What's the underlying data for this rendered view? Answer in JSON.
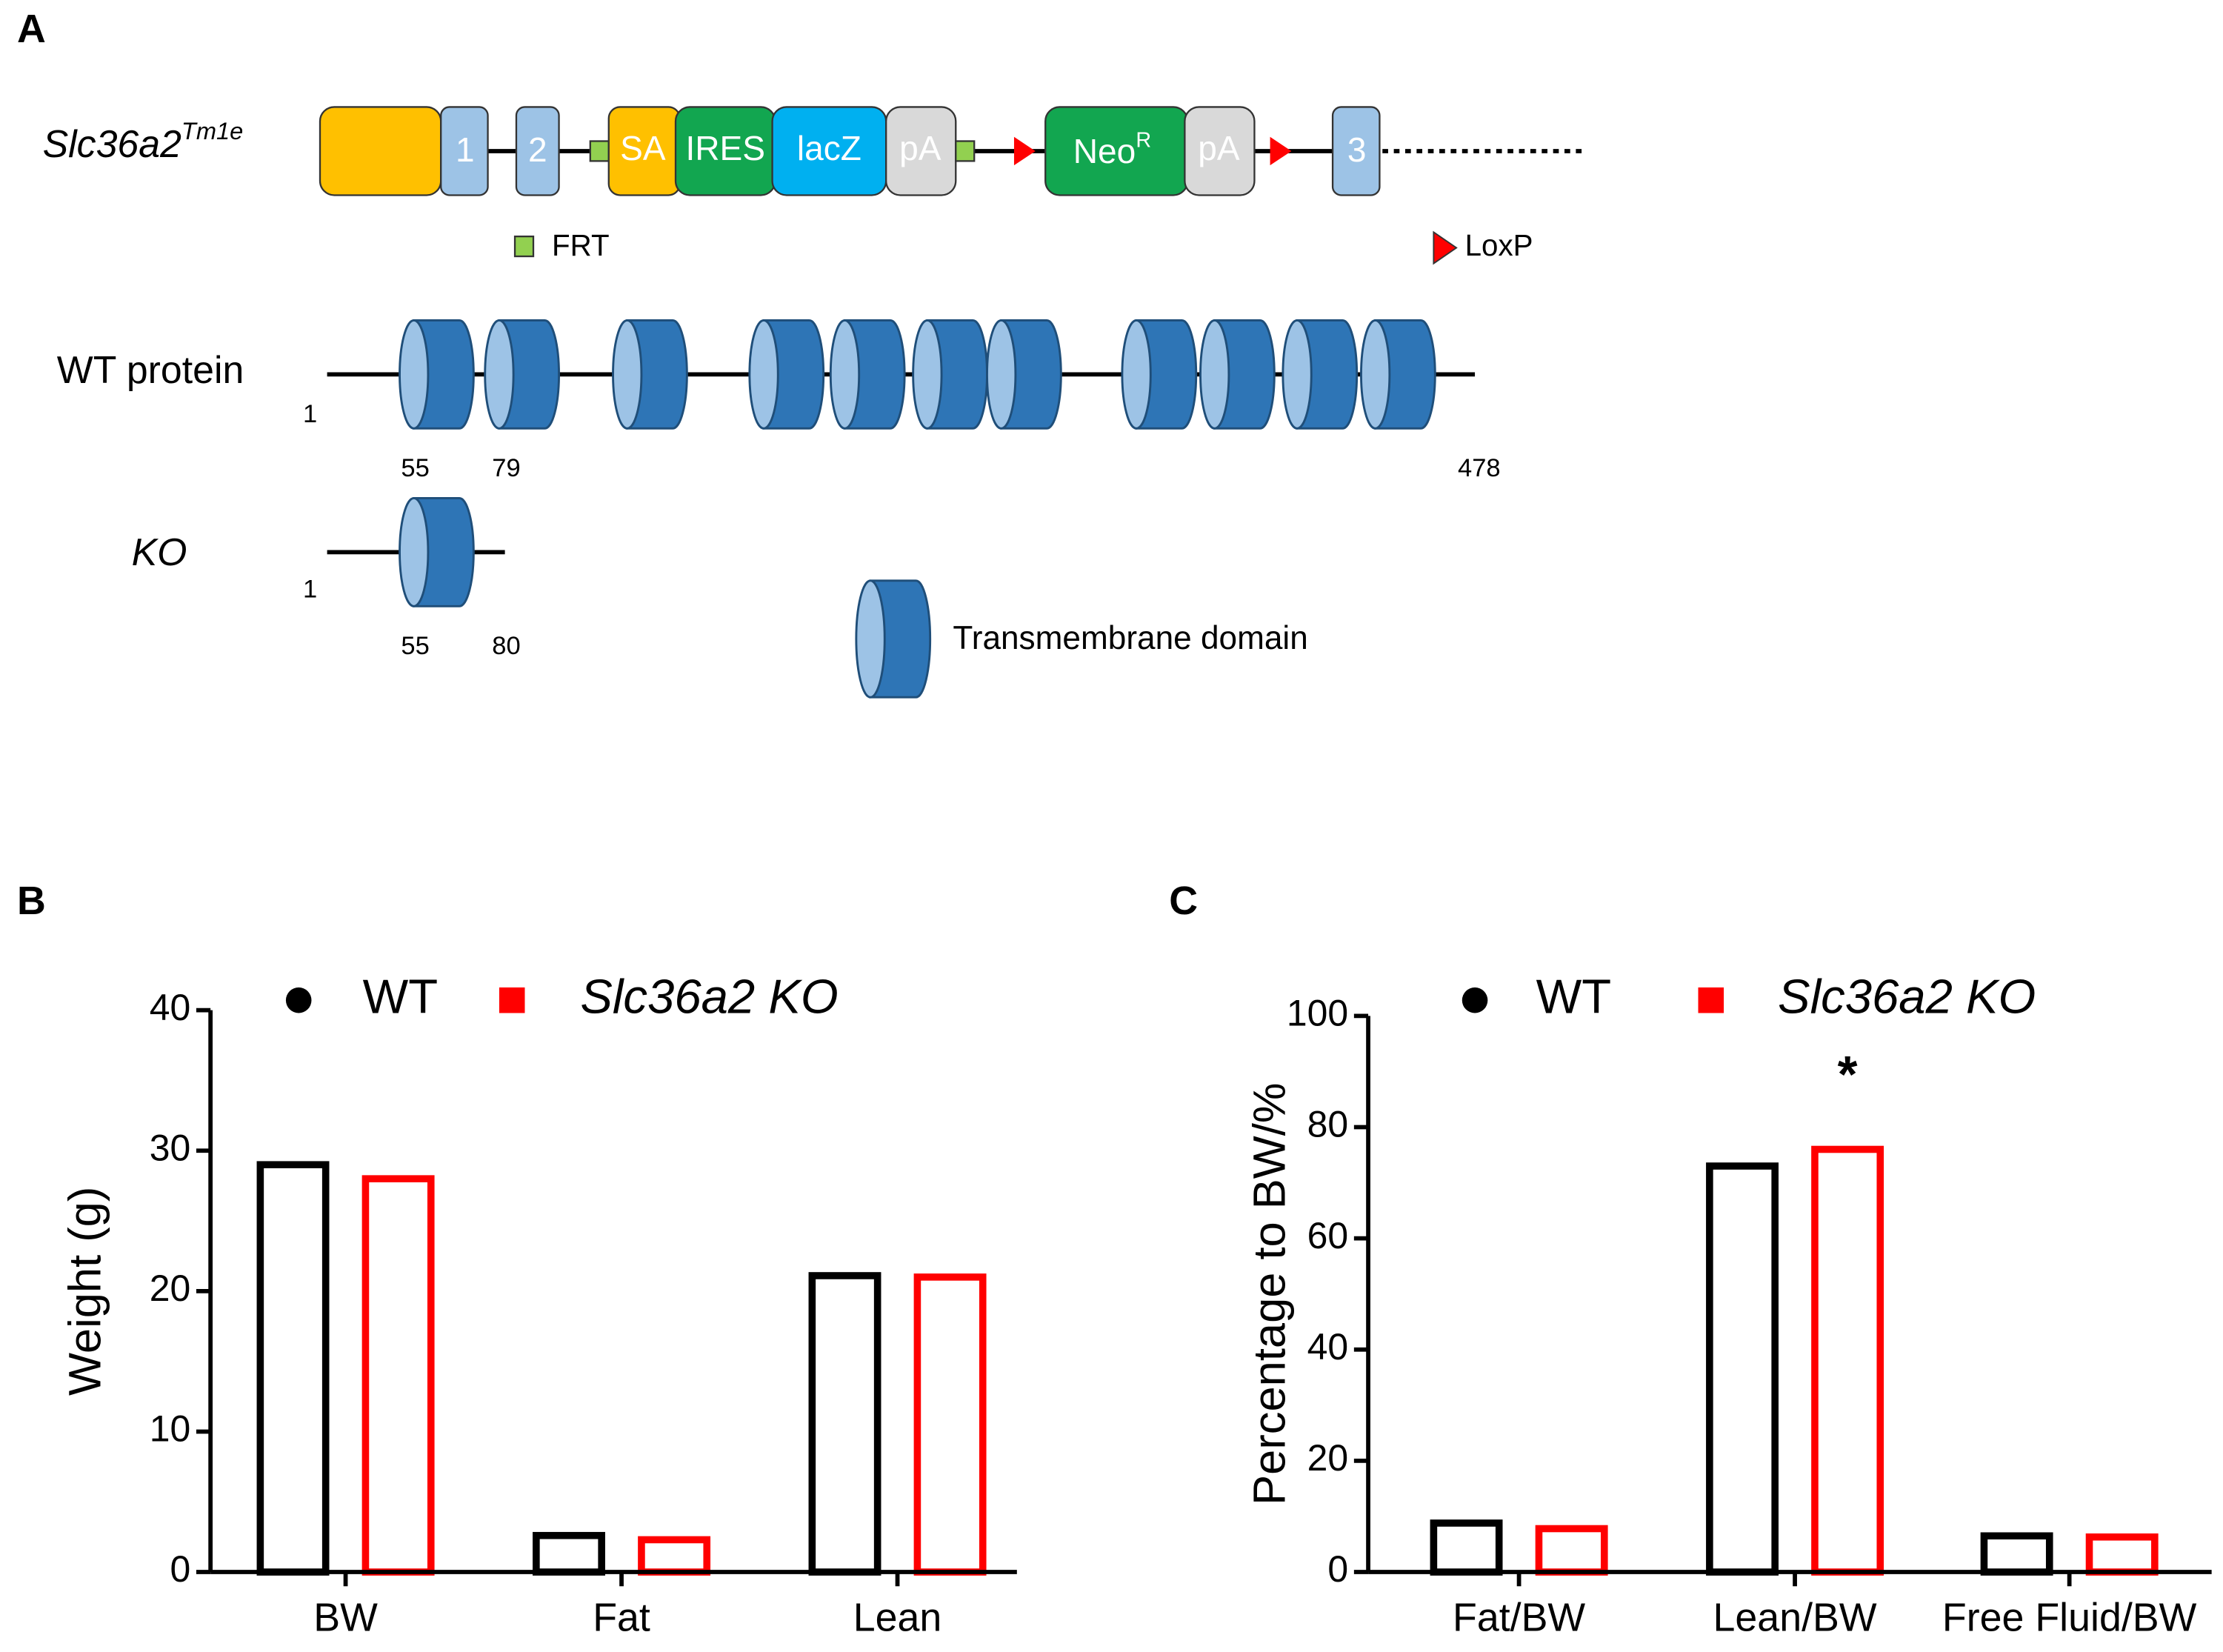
{
  "panels": [
    "A",
    "B",
    "C"
  ],
  "diagram": {
    "gene_label": "Slc36a2",
    "gene_superscript": "Tm1e",
    "elements": [
      "1",
      "2",
      "SA",
      "IRES",
      "lacZ",
      "pA",
      "Neo",
      "pA",
      "3"
    ],
    "neo_superscript": "R",
    "legend_frt": "FRT",
    "legend_loxp": "LoxP",
    "wt_label": "WT protein",
    "wt_positions": [
      "1",
      "55",
      "79",
      "478"
    ],
    "ko_label": "KO",
    "ko_positions": [
      "1",
      "55",
      "80"
    ],
    "tm_legend": "Transmembrane domain"
  },
  "chart_data": [
    {
      "type": "bar",
      "categories": [
        "BW",
        "Fat",
        "Lean"
      ],
      "series": [
        {
          "name": "WT",
          "color": "#000000",
          "marker": "circle",
          "values": [
            29,
            2.6,
            21.1
          ]
        },
        {
          "name": "Slc36a2 KO",
          "color": "#ff0000",
          "marker": "square",
          "values": [
            28,
            2.3,
            21
          ]
        }
      ],
      "y_label": "Weight (g)",
      "ylim": [
        0,
        40
      ],
      "yticks": [
        0,
        10,
        20,
        30,
        40
      ],
      "legend": "top"
    },
    {
      "type": "bar",
      "categories": [
        "Fat/BW",
        "Lean/BW",
        "Free Fluid/BW"
      ],
      "series": [
        {
          "name": "WT",
          "color": "#000000",
          "marker": "circle",
          "values": [
            8.8,
            73,
            6.5
          ]
        },
        {
          "name": "Slc36a2 KO",
          "color": "#ff0000",
          "marker": "square",
          "values": [
            7.8,
            76,
            6.3
          ]
        }
      ],
      "y_label": "Percentage to BW/%",
      "ylim": [
        0,
        100
      ],
      "yticks": [
        0,
        20,
        40,
        60,
        80,
        100
      ],
      "legend": "top",
      "annotation": "*"
    }
  ]
}
